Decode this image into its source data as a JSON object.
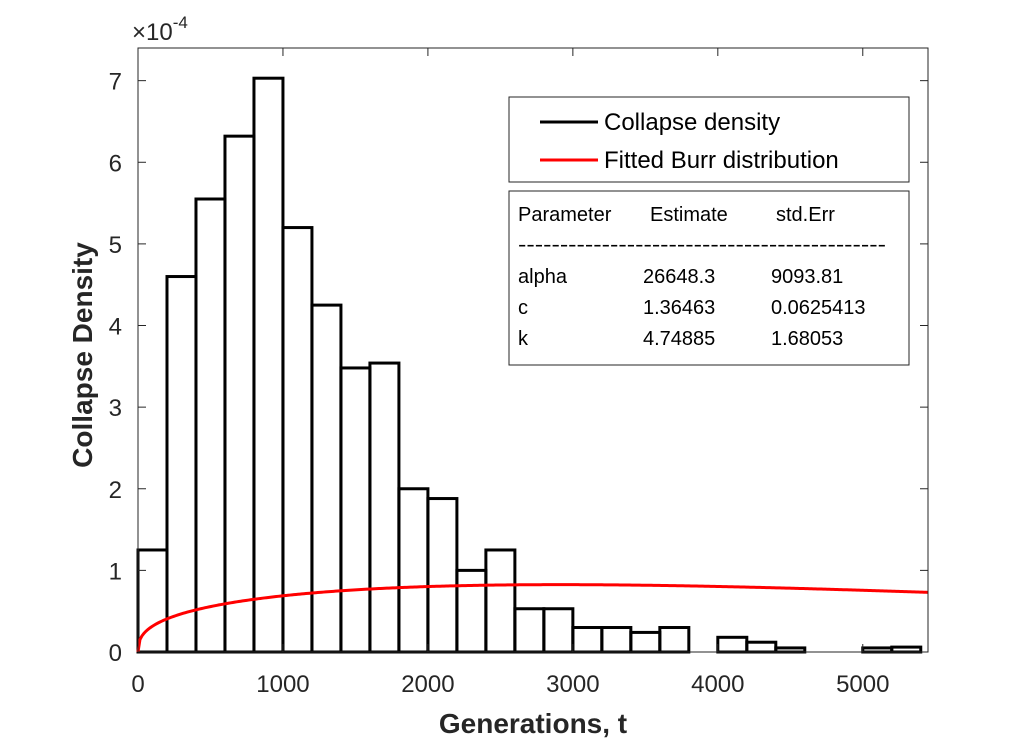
{
  "chart_data": {
    "type": "bar",
    "xlabel": "Generations, t",
    "ylabel": "Collapse Density",
    "y_exponent": "-4",
    "y_multiplier_symbol": "×10",
    "xlim": [
      0,
      5450
    ],
    "ylim": [
      0,
      7.4
    ],
    "xticks": [
      0,
      1000,
      2000,
      3000,
      4000,
      5000
    ],
    "xtick_labels": [
      "0",
      "1000",
      "2000",
      "3000",
      "4000",
      "5000"
    ],
    "yticks": [
      0,
      1,
      2,
      3,
      4,
      5,
      6,
      7
    ],
    "ytick_labels": [
      "0",
      "1",
      "2",
      "3",
      "4",
      "5",
      "6",
      "7"
    ],
    "bin_width": 200,
    "bin_edges": [
      0,
      200,
      400,
      600,
      800,
      1000,
      1200,
      1400,
      1600,
      1800,
      2000,
      2200,
      2400,
      2600,
      2800,
      3000,
      3200,
      3400,
      3600,
      3800,
      4000,
      4200,
      4400,
      4600,
      4800,
      5000,
      5200,
      5400
    ],
    "series": [
      {
        "name": "Collapse density",
        "kind": "histogram",
        "color": "#000000",
        "values": [
          1.25,
          4.6,
          5.55,
          6.32,
          7.03,
          5.2,
          4.25,
          3.48,
          3.54,
          2.0,
          1.88,
          1.0,
          1.25,
          0.53,
          0.53,
          0.3,
          0.3,
          0.24,
          0.3,
          0.0,
          0.18,
          0.12,
          0.05,
          0.0,
          0.0,
          0.05,
          0.06
        ]
      },
      {
        "name": "Fitted Burr distribution",
        "kind": "line",
        "color": "#ff0000",
        "params": {
          "alpha": 26648.3,
          "c": 1.36463,
          "k": 4.74885
        }
      }
    ],
    "legend_position": "top-right",
    "fit_table": {
      "headers": [
        "Parameter",
        "Estimate",
        "std.Err"
      ],
      "separator": "--------------------------------------------",
      "rows": [
        {
          "param": "alpha",
          "estimate": "26648.3",
          "stderr": "9093.81"
        },
        {
          "param": "c",
          "estimate": "1.36463",
          "stderr": "0.0625413"
        },
        {
          "param": "k",
          "estimate": "4.74885",
          "stderr": "1.68053"
        }
      ]
    }
  }
}
